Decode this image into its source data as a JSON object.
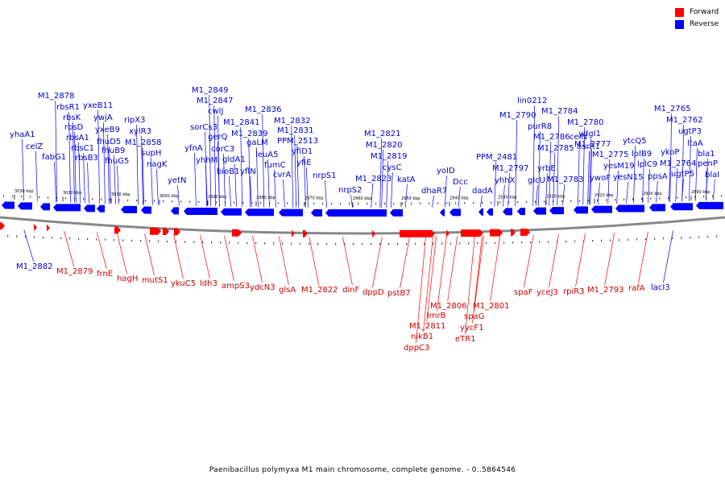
{
  "legend": {
    "forward_label": "Forward",
    "reverse_label": "Reverse"
  },
  "colors": {
    "forward": "#ff0000",
    "reverse": "#0000ff",
    "forward_label": "#cc0000",
    "reverse_label": "#0000cc",
    "backbone": "#888888"
  },
  "caption": "Paenibacillus polymyxa M1 main chromosome, complete genome. - 0..5864546",
  "scale_ticks": [
    "3030 kbp",
    "3020 kbp",
    "3010 kbp",
    "3000 kbp",
    "2990 kbp",
    "2980 kbp",
    "2970 kbp",
    "2960 kbp",
    "2950 kbp",
    "2940 kbp",
    "2930 kbp",
    "2920 kbp",
    "2910 kbp",
    "2900 kbp",
    "2890 kbp"
  ],
  "reverse_labels": [
    "yhaA1",
    "celZ",
    "fabG1",
    "M1_2878",
    "rbsR1",
    "rbsK",
    "rbsD",
    "rbsA1",
    "rbsC1",
    "rbsB3",
    "yxeB11",
    "ywjA",
    "yxeB9",
    "fhuD5",
    "fhuB9",
    "fhuG5",
    "ripX3",
    "xylR3",
    "M1_2858",
    "supH",
    "nagK",
    "yetN",
    "M1_2849",
    "M1_2847",
    "cwlJ",
    "sorCs3",
    "yfnA",
    "gerQ",
    "yhhM",
    "corC3",
    "M1_2841",
    "bioB1",
    "gldA1",
    "M1_2839",
    "M1_2836",
    "gaLM",
    "yflN",
    "leuA5",
    "fumC",
    "cvrA",
    "M1_2832",
    "M1_2831",
    "PPM_2513",
    "yfiD1",
    "yfiE",
    "nrpS1",
    "nrpS2",
    "M1_2823",
    "M1_2821",
    "M1_2820",
    "M1_2819",
    "cysC",
    "katA",
    "dhaR7",
    "yoID",
    "Dcc",
    "dadA",
    "PPM_2481",
    "yhhX",
    "M1_2797",
    "lin0212",
    "M1_2790",
    "purR8",
    "glcU",
    "M1_2786",
    "yrbE",
    "M1_2785",
    "M1_2784",
    "M1_2783",
    "M1_2780",
    "ydgI1",
    "celN",
    "nsrR1",
    "M1_2777",
    "ywoF",
    "M1_2775",
    "yesM19",
    "yesN15",
    "ytcQ5",
    "lplB9",
    "lplC9",
    "ppsA",
    "M1_2765",
    "ykoP",
    "M1_2762",
    "M1_2764",
    "ugtP3",
    "ugtP5",
    "ltaA",
    "bla1",
    "penP",
    "blaI",
    "M1_2882",
    "lacI3"
  ],
  "forward_labels": [
    "M1_2879",
    "frnE",
    "hagH",
    "mutS1",
    "ykuC5",
    "ldh3",
    "ampS3",
    "ydcN3",
    "glsA",
    "M1_2822",
    "dinF",
    "dppD",
    "pstB7",
    "M1_2811",
    "nikB1",
    "dppC3",
    "lmrB",
    "M1_2806",
    "spaG",
    "yycF1",
    "eTR1",
    "M1_2801",
    "spaF",
    "yceJ3",
    "rpiR3",
    "M1_2793",
    "rafA"
  ]
}
